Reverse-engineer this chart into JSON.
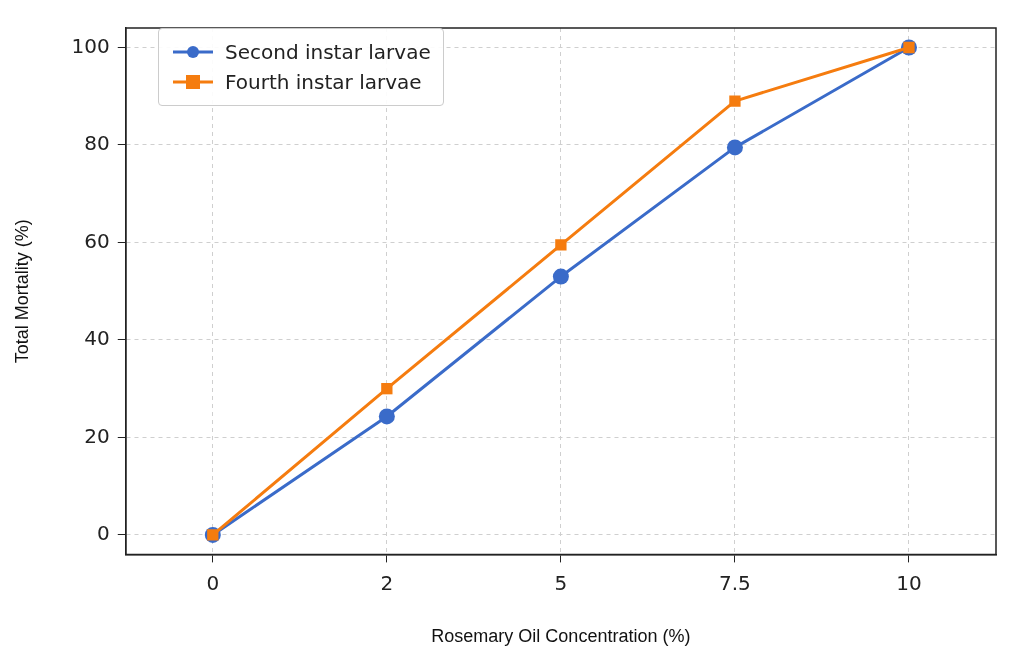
{
  "chart_data": {
    "type": "line",
    "xlabel": "Rosemary Oil Concentration (%)",
    "ylabel": "Total Mortality (%)",
    "categories": [
      "0",
      "2",
      "5",
      "7.5",
      "10"
    ],
    "series": [
      {
        "name": "Second instar larvae",
        "color": "#3a6bc9",
        "values": [
          0,
          24.3,
          53,
          79.5,
          100
        ],
        "marker": "circle"
      },
      {
        "name": "Fourth instar larvae",
        "color": "#f57c0f",
        "values": [
          0,
          30,
          59.5,
          89,
          100
        ],
        "marker": "square"
      }
    ],
    "ylim": [
      -4,
      104
    ],
    "yticks": [
      0,
      20,
      40,
      60,
      80,
      100
    ],
    "grid": true,
    "line_style": "solid",
    "legend": "top left"
  }
}
